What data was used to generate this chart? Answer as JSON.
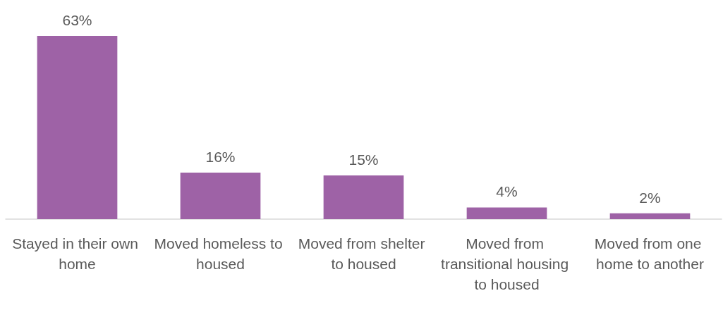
{
  "chart_data": {
    "type": "bar",
    "categories": [
      "Stayed in their own home",
      "Moved homeless to housed",
      "Moved from shelter to housed",
      "Moved from transitional housing to housed",
      "Moved from one home to another"
    ],
    "values": [
      63,
      16,
      15,
      4,
      2
    ],
    "value_labels": [
      "63%",
      "16%",
      "15%",
      "4%",
      "2%"
    ],
    "color": "#9e62a6"
  }
}
